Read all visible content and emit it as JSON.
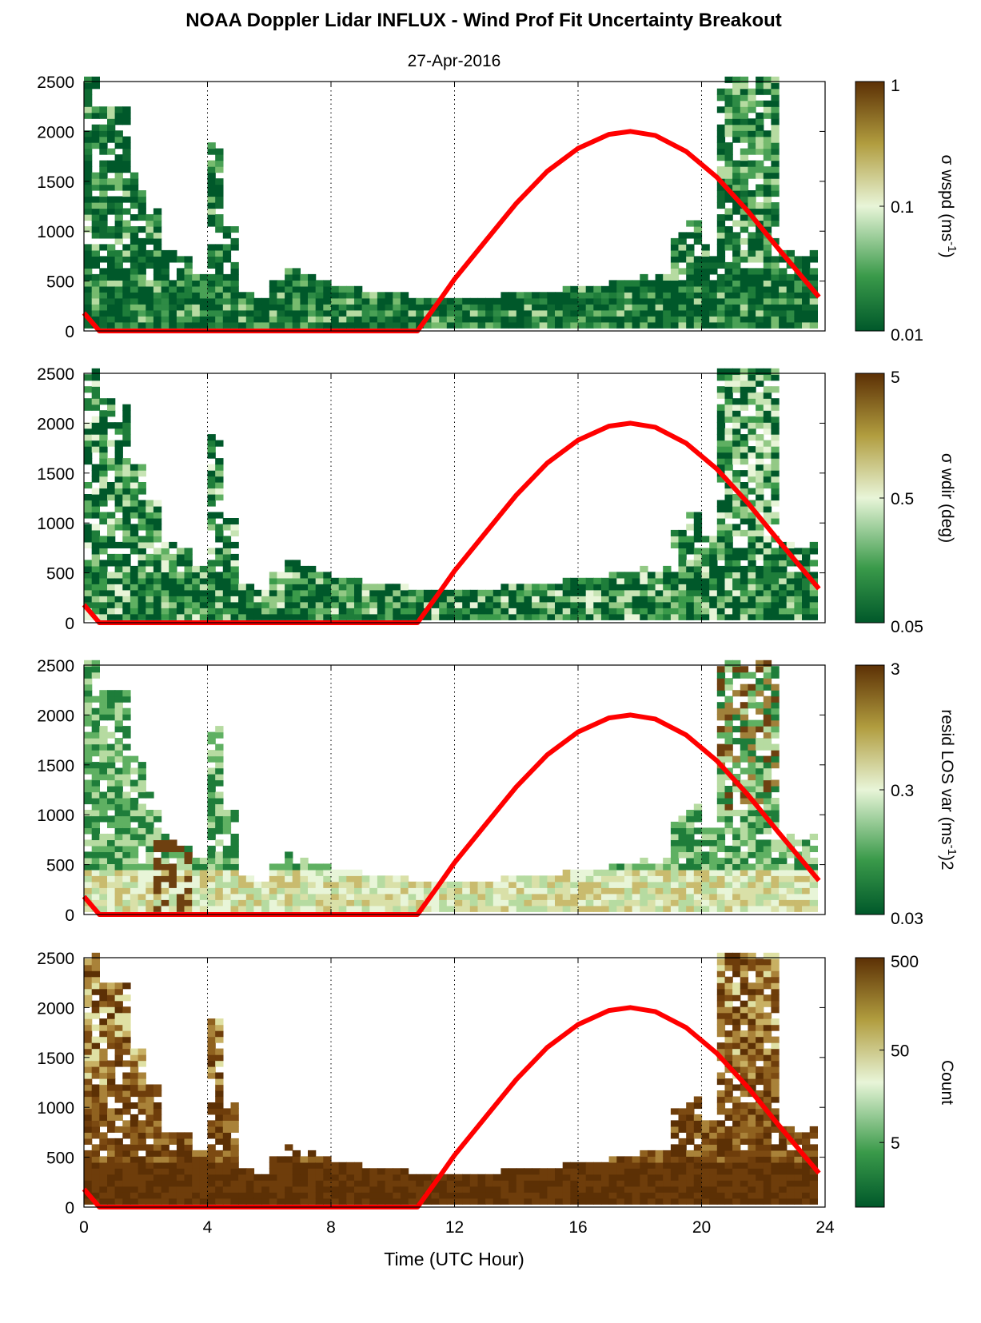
{
  "figure": {
    "title": "NOAA Doppler Lidar INFLUX - Wind Prof Fit Uncertainty Breakout",
    "subtitle": "27-Apr-2016",
    "xlabel": "Time (UTC Hour)"
  },
  "colors": {
    "sun_curve": "#ff0000",
    "colormap_low": "#00582a",
    "colormap_mid": "#e8f5d8",
    "colormap_high": "#5c3005"
  },
  "chart_data": [
    {
      "type": "heatmap",
      "panel": "wind speed uncertainty",
      "colorbar_label": "σ wspd (ms-1)",
      "colorbar_label_main": "σ wspd (ms",
      "colorbar_label_sup": "-1",
      "colorbar_label_end": ")",
      "colorbar_scale": "log",
      "colorbar_range": [
        0.01,
        1
      ],
      "colorbar_ticks": [
        "1",
        "0.1",
        "0.01"
      ],
      "colorbar_tick_values": [
        1,
        0.1,
        0.01
      ],
      "xlim": [
        0,
        24
      ],
      "ylim": [
        0,
        2500
      ],
      "xticks": [
        0,
        4,
        8,
        12,
        16,
        20,
        24
      ],
      "yticks": [
        "0",
        "500",
        "1000",
        "1500",
        "2000",
        "2500"
      ],
      "grid": "vertical dotted at 4-hour intervals",
      "dominant_level": 0.02,
      "high_value_hours": [
        21,
        22
      ]
    },
    {
      "type": "heatmap",
      "panel": "wind direction uncertainty",
      "colorbar_label": "σ wdir (deg)",
      "colorbar_label_main": "σ wdir (deg)",
      "colorbar_label_sup": "",
      "colorbar_label_end": "",
      "colorbar_scale": "log",
      "colorbar_range": [
        0.05,
        5
      ],
      "colorbar_ticks": [
        "5",
        "0.5",
        "0.05"
      ],
      "colorbar_tick_values": [
        5,
        0.5,
        0.05
      ],
      "xlim": [
        0,
        24
      ],
      "ylim": [
        0,
        2500
      ],
      "xticks": [
        0,
        4,
        8,
        12,
        16,
        20,
        24
      ],
      "yticks": [
        "0",
        "500",
        "1000",
        "1500",
        "2000",
        "2500"
      ],
      "grid": "vertical dotted at 4-hour intervals",
      "dominant_level": 0.15,
      "high_value_hours": [
        4
      ]
    },
    {
      "type": "heatmap",
      "panel": "residual line-of-sight variance",
      "colorbar_label": "resid LOS var (ms-1)2",
      "colorbar_label_main": "resid LOS var (ms",
      "colorbar_label_sup": "-1",
      "colorbar_label_end": ")2",
      "colorbar_scale": "log",
      "colorbar_range": [
        0.03,
        3
      ],
      "colorbar_ticks": [
        "3",
        "0.3",
        "0.03"
      ],
      "colorbar_tick_values": [
        3,
        0.3,
        0.03
      ],
      "xlim": [
        0,
        24
      ],
      "ylim": [
        0,
        2500
      ],
      "xticks": [
        0,
        4,
        8,
        12,
        16,
        20,
        24
      ],
      "yticks": [
        "0",
        "500",
        "1000",
        "1500",
        "2000",
        "2500"
      ],
      "grid": "vertical dotted at 4-hour intervals",
      "dominant_level": 0.3,
      "high_value_hours": [
        2.5,
        20.5
      ]
    },
    {
      "type": "heatmap",
      "panel": "count",
      "colorbar_label": "Count",
      "colorbar_label_main": "Count",
      "colorbar_label_sup": "",
      "colorbar_label_end": "",
      "colorbar_scale": "log",
      "colorbar_range": [
        1,
        500
      ],
      "colorbar_ticks": [
        "500",
        "50",
        "5"
      ],
      "colorbar_tick_values": [
        500,
        50,
        5
      ],
      "xlim": [
        0,
        24
      ],
      "ylim": [
        0,
        2500
      ],
      "xticks": [
        0,
        4,
        8,
        12,
        16,
        20,
        24
      ],
      "yticks": [
        "0",
        "500",
        "1000",
        "1500",
        "2000",
        "2500"
      ],
      "grid": "vertical dotted at 4-hour intervals",
      "dominant_level": 400,
      "high_value_hours": []
    }
  ],
  "data_coverage": {
    "description_values": "top of valid data (m) per hourly-ish time sample",
    "times": [
      0,
      0.5,
      1,
      1.5,
      2,
      2.5,
      3,
      3.5,
      4,
      4.5,
      5,
      5.5,
      6,
      6.5,
      7,
      7.5,
      8,
      8.5,
      9,
      9.5,
      10,
      10.5,
      11,
      11.5,
      12,
      12.5,
      13,
      13.5,
      14,
      14.5,
      15,
      15.5,
      16,
      16.5,
      17,
      17.5,
      18,
      18.5,
      19,
      19.5,
      20,
      20.5,
      21,
      21.5,
      22,
      22.5,
      23,
      23.5
    ],
    "tops": [
      2500,
      2250,
      2250,
      1550,
      1200,
      780,
      700,
      550,
      1850,
      1000,
      380,
      330,
      500,
      620,
      560,
      460,
      450,
      420,
      380,
      360,
      350,
      330,
      300,
      310,
      330,
      330,
      330,
      340,
      340,
      360,
      380,
      400,
      410,
      430,
      470,
      500,
      520,
      540,
      950,
      1100,
      860,
      2500,
      2500,
      2500,
      2500,
      800,
      700,
      800
    ]
  },
  "sun_elevation_curve": {
    "description": "solar elevation overlay (red), shown in height-axis units",
    "points": [
      [
        0,
        180
      ],
      [
        0.5,
        0
      ],
      [
        10.8,
        0
      ],
      [
        11.5,
        300
      ],
      [
        12,
        520
      ],
      [
        13,
        900
      ],
      [
        14,
        1280
      ],
      [
        15,
        1600
      ],
      [
        16,
        1830
      ],
      [
        17,
        1970
      ],
      [
        17.7,
        2000
      ],
      [
        18.5,
        1960
      ],
      [
        19.5,
        1800
      ],
      [
        20.5,
        1540
      ],
      [
        21.5,
        1200
      ],
      [
        22.5,
        820
      ],
      [
        23.8,
        340
      ]
    ]
  }
}
